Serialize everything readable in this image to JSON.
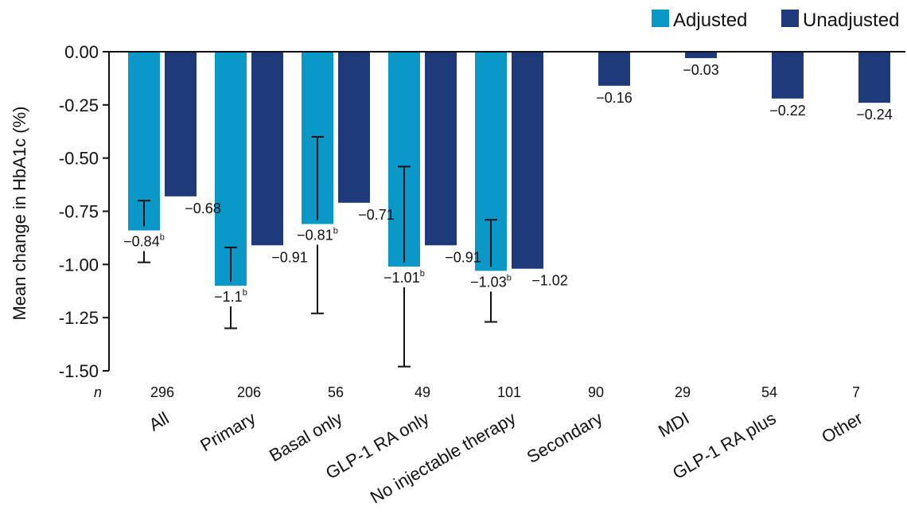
{
  "chart_data": {
    "type": "bar",
    "ylabel": "Mean change in HbA1c (%)",
    "n_label": "n",
    "ylim": [
      -1.5,
      0.0
    ],
    "yticks": [
      "0.00",
      "-0.25",
      "-0.50",
      "-0.75",
      "-1.00",
      "-1.25",
      "-1.50"
    ],
    "ytick_values": [
      0.0,
      -0.25,
      -0.5,
      -0.75,
      -1.0,
      -1.25,
      -1.5
    ],
    "grid": false,
    "legend_position": "top-right",
    "categories": [
      "All",
      "Primary",
      "Basal only",
      "GLP-1 RA only",
      "No injectable therapy",
      "Secondary",
      "MDI",
      "GLP-1 RA plus",
      "Other"
    ],
    "n_values": [
      "296",
      "206",
      "56",
      "49",
      "101",
      "90",
      "29",
      "54",
      "7"
    ],
    "series": [
      {
        "name": "Adjusted",
        "color": "#0a98c9",
        "values": [
          -0.84,
          -1.1,
          -0.81,
          -1.01,
          -1.03,
          null,
          null,
          null,
          null
        ],
        "labels": [
          "−0.84",
          "−1.1",
          "−0.81",
          "−1.01",
          "−1.03",
          null,
          null,
          null,
          null
        ],
        "label_superscript": "b",
        "error_low": [
          -0.99,
          -1.3,
          -1.23,
          -1.48,
          -1.27,
          null,
          null,
          null,
          null
        ],
        "error_high": [
          -0.7,
          -0.92,
          -0.4,
          -0.54,
          -0.79,
          null,
          null,
          null,
          null
        ]
      },
      {
        "name": "Unadjusted",
        "color": "#1f3a7a",
        "values": [
          -0.68,
          -0.91,
          -0.71,
          -0.91,
          -1.02,
          -0.16,
          -0.03,
          -0.22,
          -0.24
        ],
        "labels": [
          "−0.68",
          "−0.91",
          "−0.71",
          "−0.91",
          "−1.02",
          "−0.16",
          "−0.03",
          "−0.22",
          "−0.24"
        ]
      }
    ]
  }
}
